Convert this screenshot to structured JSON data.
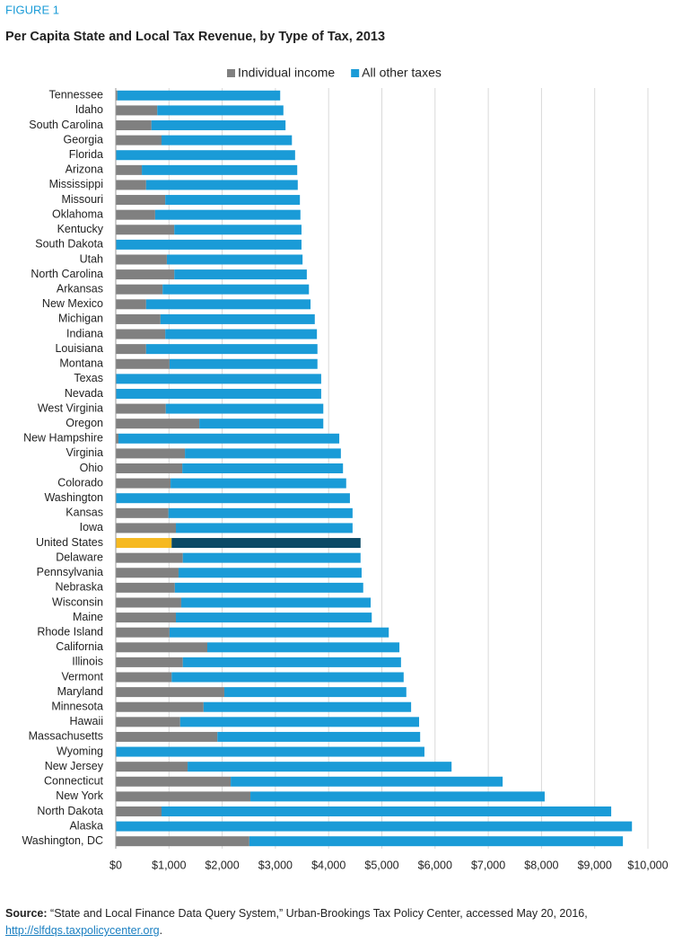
{
  "chart_data": {
    "type": "stacked-barh",
    "figure_label": "FIGURE 1",
    "title": "Per Capita State and Local Tax Revenue, by Type of Tax, 2013",
    "categories": [
      "Tennessee",
      "Idaho",
      "South Carolina",
      "Georgia",
      "Florida",
      "Arizona",
      "Mississippi",
      "Missouri",
      "Oklahoma",
      "Kentucky",
      "South Dakota",
      "Utah",
      "North Carolina",
      "Arkansas",
      "New Mexico",
      "Michigan",
      "Indiana",
      "Louisiana",
      "Montana",
      "Texas",
      "Nevada",
      "West Virginia",
      "Oregon",
      "New Hampshire",
      "Virginia",
      "Ohio",
      "Colorado",
      "Washington",
      "Kansas",
      "Iowa",
      "United States",
      "Delaware",
      "Pennsylvania",
      "Nebraska",
      "Wisconsin",
      "Maine",
      "Rhode Island",
      "California",
      "Illinois",
      "Vermont",
      "Maryland",
      "Minnesota",
      "Hawaii",
      "Massachusetts",
      "Wyoming",
      "New Jersey",
      "Connecticut",
      "New York",
      "North Dakota",
      "Alaska",
      "Washington, DC"
    ],
    "series": [
      {
        "name": "Individual income",
        "color": "#808080",
        "values": [
          30,
          780,
          670,
          860,
          0,
          490,
          570,
          930,
          740,
          1100,
          0,
          960,
          1100,
          880,
          570,
          840,
          930,
          570,
          1010,
          0,
          0,
          940,
          1570,
          50,
          1300,
          1250,
          1030,
          0,
          990,
          1130,
          1050,
          1260,
          1180,
          1110,
          1230,
          1130,
          1010,
          1720,
          1260,
          1050,
          2040,
          1650,
          1210,
          1910,
          0,
          1350,
          2160,
          2530,
          860,
          0,
          2510
        ]
      },
      {
        "name": "All other taxes",
        "color": "#1a9bd7",
        "values": [
          3060,
          2370,
          2520,
          2450,
          3370,
          2920,
          2850,
          2530,
          2730,
          2390,
          3490,
          2550,
          2490,
          2750,
          3090,
          2900,
          2850,
          3220,
          2780,
          3860,
          3860,
          2960,
          2330,
          4150,
          2930,
          3020,
          3300,
          4400,
          3460,
          3320,
          3550,
          3340,
          3440,
          3540,
          3560,
          3680,
          4120,
          3610,
          4100,
          4360,
          3420,
          3900,
          4490,
          3810,
          5800,
          4960,
          5110,
          5530,
          8450,
          9700,
          7020
        ]
      }
    ],
    "highlight_category": "United States",
    "highlight_colors": [
      "#f6b920",
      "#0b4a66"
    ],
    "xlim": [
      0,
      10000
    ],
    "xticks": [
      {
        "value": 0,
        "label": "$0"
      },
      {
        "value": 1000,
        "label": "$1,000"
      },
      {
        "value": 2000,
        "label": "$2,000"
      },
      {
        "value": 3000,
        "label": "$3,000"
      },
      {
        "value": 4000,
        "label": "$4,000"
      },
      {
        "value": 5000,
        "label": "$5,000"
      },
      {
        "value": 6000,
        "label": "$6,000"
      },
      {
        "value": 7000,
        "label": "$7,000"
      },
      {
        "value": 8000,
        "label": "$8,000"
      },
      {
        "value": 9000,
        "label": "$9,000"
      },
      {
        "value": 10000,
        "label": "$10,000"
      }
    ],
    "grid": true,
    "legend": "top",
    "source": {
      "label": "Source:",
      "text": "“State and Local Finance Data Query System,” Urban-Brookings Tax Policy Center, accessed May 20, 2016,",
      "link": "http://slfdqs.taxpolicycenter.org",
      "end": "."
    }
  }
}
